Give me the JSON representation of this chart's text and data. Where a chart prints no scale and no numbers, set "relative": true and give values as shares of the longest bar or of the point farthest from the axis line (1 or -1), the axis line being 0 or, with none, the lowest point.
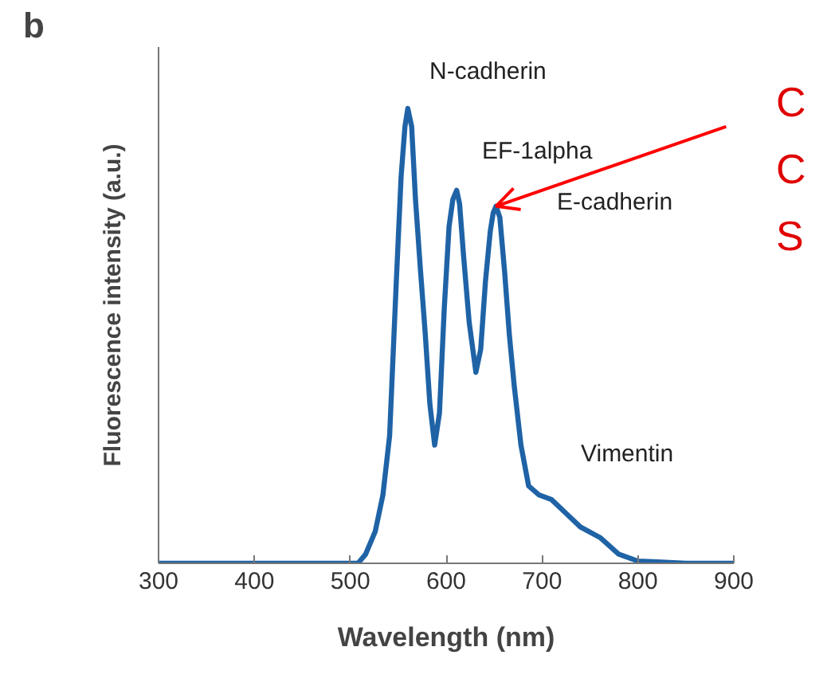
{
  "chart_data": {
    "type": "line",
    "title": "b",
    "xlabel": "Wavelength (nm)",
    "ylabel": "Fluorescence intensity (a.u.)",
    "relative": true,
    "grid": false,
    "marker": "none",
    "line_style": "solid",
    "xlim": [
      300,
      900
    ],
    "xticks": [
      300,
      400,
      500,
      600,
      700,
      800,
      900
    ],
    "series": [
      {
        "color": "#1f63a6",
        "x": [
          300,
          350,
          400,
          450,
          500,
          508,
          516,
          526,
          534,
          541,
          548,
          553,
          557,
          560,
          564,
          568,
          573,
          578,
          583,
          588,
          593,
          598,
          603,
          607,
          611,
          614,
          618,
          624,
          631,
          636,
          641,
          646,
          649,
          652,
          656,
          661,
          666,
          671,
          678,
          686,
          697,
          710,
          725,
          740,
          761,
          780,
          800,
          820,
          850,
          875,
          900
        ],
        "values": [
          0,
          0,
          0,
          0,
          0,
          0,
          0.02,
          0.07,
          0.15,
          0.28,
          0.62,
          0.85,
          0.96,
          1,
          0.96,
          0.8,
          0.65,
          0.51,
          0.35,
          0.26,
          0.33,
          0.56,
          0.74,
          0.8,
          0.82,
          0.79,
          0.68,
          0.53,
          0.42,
          0.47,
          0.62,
          0.73,
          0.77,
          0.785,
          0.76,
          0.64,
          0.5,
          0.39,
          0.26,
          0.17,
          0.15,
          0.14,
          0.11,
          0.08,
          0.056,
          0.02,
          0.005,
          0.003,
          0.0,
          0.0,
          0.0
        ]
      }
    ],
    "annotations": [
      "N-cadherin",
      "EF-1alpha",
      "E-cadherin",
      "Vimentin",
      {
        "text": "C",
        "x": 652,
        "y": 0.785
      },
      "C",
      "S"
    ]
  }
}
